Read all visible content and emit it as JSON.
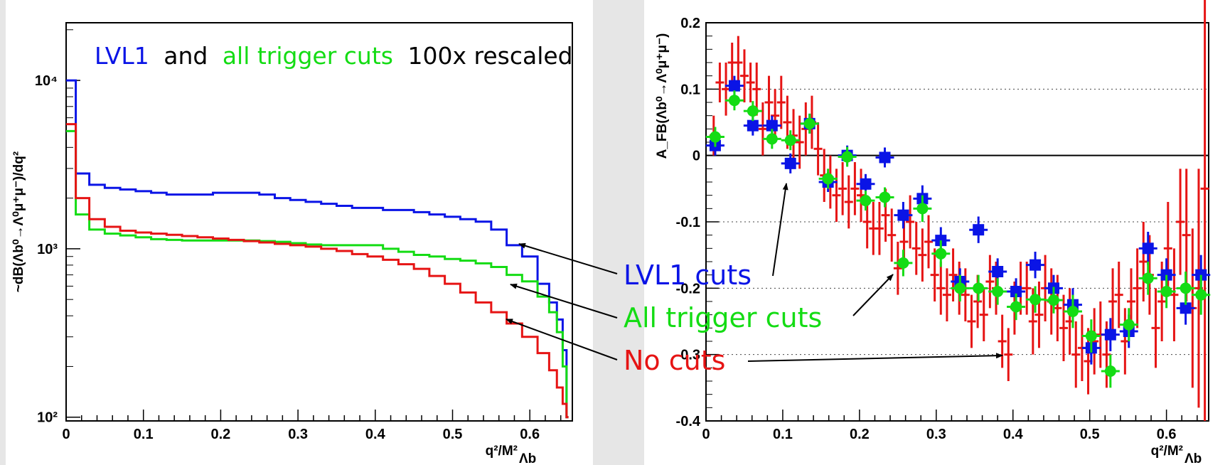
{
  "colors": {
    "lvl1": "#0a14e6",
    "trigger": "#14dc14",
    "nocuts": "#e61414",
    "axis": "#000000",
    "bg": "#e6e6e6"
  },
  "annotations": {
    "title_lvl1": "LVL1",
    "title_and": "and",
    "title_trigger": "all trigger cuts",
    "title_rescaled": "100x rescaled",
    "label_lvl1": "LVL1 cuts",
    "label_trigger": "All trigger cuts",
    "label_nocuts": "No cuts"
  },
  "chart_data": [
    {
      "type": "line",
      "panel": "left",
      "drawstyle": "steps",
      "yscale": "log",
      "xlabel": "q²/M²",
      "xlabel_subscript": "Λb",
      "ylabel": "~dB(Λb⁰→Λ⁰μ⁺μ⁻)/dq²",
      "xlim": [
        0,
        0.655
      ],
      "ylim": [
        95,
        22000
      ],
      "xticks": [
        "0",
        "0.1",
        "0.2",
        "0.3",
        "0.4",
        "0.5",
        "0.6"
      ],
      "yticks": [
        "10²",
        "10³",
        "10⁴"
      ],
      "x": [
        0.005,
        0.02,
        0.04,
        0.06,
        0.08,
        0.1,
        0.12,
        0.14,
        0.16,
        0.18,
        0.2,
        0.22,
        0.24,
        0.26,
        0.28,
        0.3,
        0.32,
        0.34,
        0.36,
        0.38,
        0.4,
        0.42,
        0.44,
        0.46,
        0.48,
        0.5,
        0.52,
        0.54,
        0.56,
        0.58,
        0.6,
        0.62,
        0.63,
        0.64,
        0.645,
        0.65
      ],
      "series": [
        {
          "name": "LVL1 cuts",
          "color": "#0a14e6",
          "values": [
            10000,
            2800,
            2400,
            2300,
            2250,
            2200,
            2150,
            2100,
            2100,
            2100,
            2150,
            2150,
            2150,
            2100,
            2000,
            1950,
            1900,
            1850,
            1800,
            1750,
            1750,
            1700,
            1700,
            1650,
            1600,
            1550,
            1500,
            1450,
            1300,
            1050,
            900,
            620,
            480,
            380,
            250,
            100
          ]
        },
        {
          "name": "All trigger cuts",
          "color": "#14dc14",
          "values": [
            5000,
            1600,
            1300,
            1230,
            1200,
            1170,
            1140,
            1130,
            1120,
            1120,
            1120,
            1120,
            1120,
            1110,
            1100,
            1080,
            1060,
            1050,
            1050,
            1050,
            1050,
            1000,
            960,
            920,
            900,
            870,
            850,
            820,
            780,
            700,
            640,
            520,
            420,
            320,
            200,
            100
          ]
        },
        {
          "name": "No cuts",
          "color": "#e61414",
          "values": [
            5500,
            2000,
            1500,
            1350,
            1280,
            1250,
            1230,
            1210,
            1190,
            1170,
            1150,
            1130,
            1110,
            1090,
            1070,
            1050,
            1030,
            1000,
            970,
            930,
            900,
            860,
            810,
            760,
            690,
            620,
            550,
            480,
            420,
            360,
            300,
            240,
            190,
            150,
            120,
            100
          ]
        }
      ]
    },
    {
      "type": "scatter",
      "panel": "right",
      "xlabel": "q²/M²",
      "xlabel_subscript": "Λb",
      "ylabel": "A_FB(Λb⁰→Λ⁰μ⁺μ⁻)",
      "xlim": [
        0,
        0.655
      ],
      "ylim": [
        -0.4,
        0.2
      ],
      "xticks": [
        "0",
        "0.1",
        "0.2",
        "0.3",
        "0.4",
        "0.5",
        "0.6"
      ],
      "yticks": [
        "-0.4",
        "-0.3",
        "-0.2",
        "-0.1",
        "0",
        "0.1",
        "0.2"
      ],
      "grid_y": [
        -0.3,
        -0.2,
        -0.1,
        0.1
      ],
      "series": [
        {
          "name": "No cuts",
          "color": "#e61414",
          "marker": "cross",
          "x": [
            0.01,
            0.018,
            0.026,
            0.034,
            0.042,
            0.05,
            0.058,
            0.066,
            0.074,
            0.082,
            0.09,
            0.098,
            0.106,
            0.114,
            0.122,
            0.13,
            0.138,
            0.146,
            0.154,
            0.162,
            0.17,
            0.178,
            0.186,
            0.194,
            0.202,
            0.21,
            0.218,
            0.226,
            0.234,
            0.242,
            0.25,
            0.258,
            0.266,
            0.274,
            0.282,
            0.29,
            0.298,
            0.306,
            0.314,
            0.322,
            0.33,
            0.338,
            0.346,
            0.354,
            0.362,
            0.37,
            0.378,
            0.386,
            0.394,
            0.402,
            0.41,
            0.418,
            0.426,
            0.434,
            0.442,
            0.45,
            0.458,
            0.466,
            0.474,
            0.482,
            0.49,
            0.498,
            0.506,
            0.514,
            0.522,
            0.53,
            0.538,
            0.546,
            0.554,
            0.562,
            0.57,
            0.578,
            0.586,
            0.594,
            0.602,
            0.61,
            0.618,
            0.626,
            0.634,
            0.642,
            0.65
          ],
          "y": [
            0.03,
            0.11,
            0.1,
            0.14,
            0.14,
            0.12,
            0.11,
            0.1,
            0.04,
            0.08,
            0.06,
            0.08,
            0.05,
            0.03,
            0.02,
            0.04,
            0.05,
            0.01,
            -0.03,
            -0.04,
            -0.06,
            -0.05,
            -0.07,
            -0.05,
            -0.06,
            -0.1,
            -0.11,
            -0.11,
            -0.09,
            -0.12,
            -0.17,
            -0.13,
            -0.1,
            -0.14,
            -0.15,
            -0.13,
            -0.18,
            -0.2,
            -0.21,
            -0.18,
            -0.2,
            -0.21,
            -0.25,
            -0.22,
            -0.24,
            -0.19,
            -0.2,
            -0.28,
            -0.3,
            -0.23,
            -0.2,
            -0.2,
            -0.25,
            -0.24,
            -0.2,
            -0.22,
            -0.23,
            -0.26,
            -0.25,
            -0.3,
            -0.29,
            -0.31,
            -0.28,
            -0.27,
            -0.3,
            -0.22,
            -0.21,
            -0.28,
            -0.22,
            -0.2,
            -0.16,
            -0.18,
            -0.26,
            -0.22,
            -0.14,
            -0.21,
            -0.1,
            -0.12,
            -0.23,
            -0.2,
            -0.05
          ],
          "yerr": [
            0.03,
            0.03,
            0.04,
            0.03,
            0.04,
            0.04,
            0.03,
            0.04,
            0.04,
            0.04,
            0.04,
            0.04,
            0.04,
            0.04,
            0.04,
            0.04,
            0.04,
            0.04,
            0.04,
            0.04,
            0.04,
            0.04,
            0.04,
            0.04,
            0.04,
            0.04,
            0.04,
            0.04,
            0.04,
            0.04,
            0.04,
            0.04,
            0.04,
            0.04,
            0.04,
            0.04,
            0.04,
            0.04,
            0.04,
            0.04,
            0.04,
            0.04,
            0.04,
            0.04,
            0.04,
            0.04,
            0.04,
            0.04,
            0.04,
            0.04,
            0.04,
            0.04,
            0.05,
            0.05,
            0.05,
            0.05,
            0.05,
            0.05,
            0.05,
            0.05,
            0.05,
            0.05,
            0.05,
            0.05,
            0.05,
            0.05,
            0.05,
            0.05,
            0.05,
            0.06,
            0.06,
            0.06,
            0.06,
            0.06,
            0.07,
            0.07,
            0.08,
            0.1,
            0.12,
            0.18,
            0.35
          ]
        },
        {
          "name": "LVL1 cuts",
          "color": "#0a14e6",
          "marker": "square",
          "x": [
            0.012,
            0.037,
            0.061,
            0.086,
            0.11,
            0.135,
            0.159,
            0.184,
            0.208,
            0.233,
            0.257,
            0.282,
            0.306,
            0.331,
            0.355,
            0.38,
            0.404,
            0.429,
            0.453,
            0.478,
            0.502,
            0.527,
            0.551,
            0.576,
            0.6,
            0.625,
            0.645
          ],
          "y": [
            0.015,
            0.105,
            0.045,
            0.045,
            -0.012,
            0.048,
            -0.04,
            0.0,
            -0.043,
            -0.003,
            -0.09,
            -0.065,
            -0.128,
            -0.19,
            -0.112,
            -0.175,
            -0.205,
            -0.165,
            -0.2,
            -0.225,
            -0.29,
            -0.27,
            -0.265,
            -0.14,
            -0.18,
            -0.23,
            -0.18
          ],
          "yerr": [
            0.015,
            0.015,
            0.015,
            0.015,
            0.015,
            0.015,
            0.015,
            0.015,
            0.015,
            0.015,
            0.02,
            0.02,
            0.02,
            0.02,
            0.02,
            0.02,
            0.02,
            0.02,
            0.02,
            0.025,
            0.025,
            0.025,
            0.025,
            0.025,
            0.025,
            0.025,
            0.03
          ]
        },
        {
          "name": "All trigger cuts",
          "color": "#14dc14",
          "marker": "circle",
          "x": [
            0.012,
            0.037,
            0.061,
            0.086,
            0.11,
            0.135,
            0.159,
            0.184,
            0.208,
            0.233,
            0.257,
            0.282,
            0.306,
            0.331,
            0.355,
            0.38,
            0.404,
            0.429,
            0.453,
            0.478,
            0.502,
            0.527,
            0.551,
            0.576,
            0.6,
            0.625,
            0.645
          ],
          "y": [
            0.028,
            0.083,
            0.067,
            0.025,
            0.023,
            0.048,
            -0.035,
            -0.002,
            -0.068,
            -0.063,
            -0.162,
            -0.08,
            -0.148,
            -0.2,
            -0.2,
            -0.205,
            -0.228,
            -0.217,
            -0.218,
            -0.235,
            -0.272,
            -0.325,
            -0.255,
            -0.185,
            -0.205,
            -0.2,
            -0.21
          ],
          "yerr": [
            0.015,
            0.015,
            0.015,
            0.015,
            0.015,
            0.015,
            0.015,
            0.015,
            0.015,
            0.015,
            0.02,
            0.02,
            0.02,
            0.02,
            0.02,
            0.02,
            0.02,
            0.02,
            0.02,
            0.025,
            0.025,
            0.025,
            0.025,
            0.025,
            0.025,
            0.025,
            0.03
          ]
        }
      ]
    }
  ]
}
